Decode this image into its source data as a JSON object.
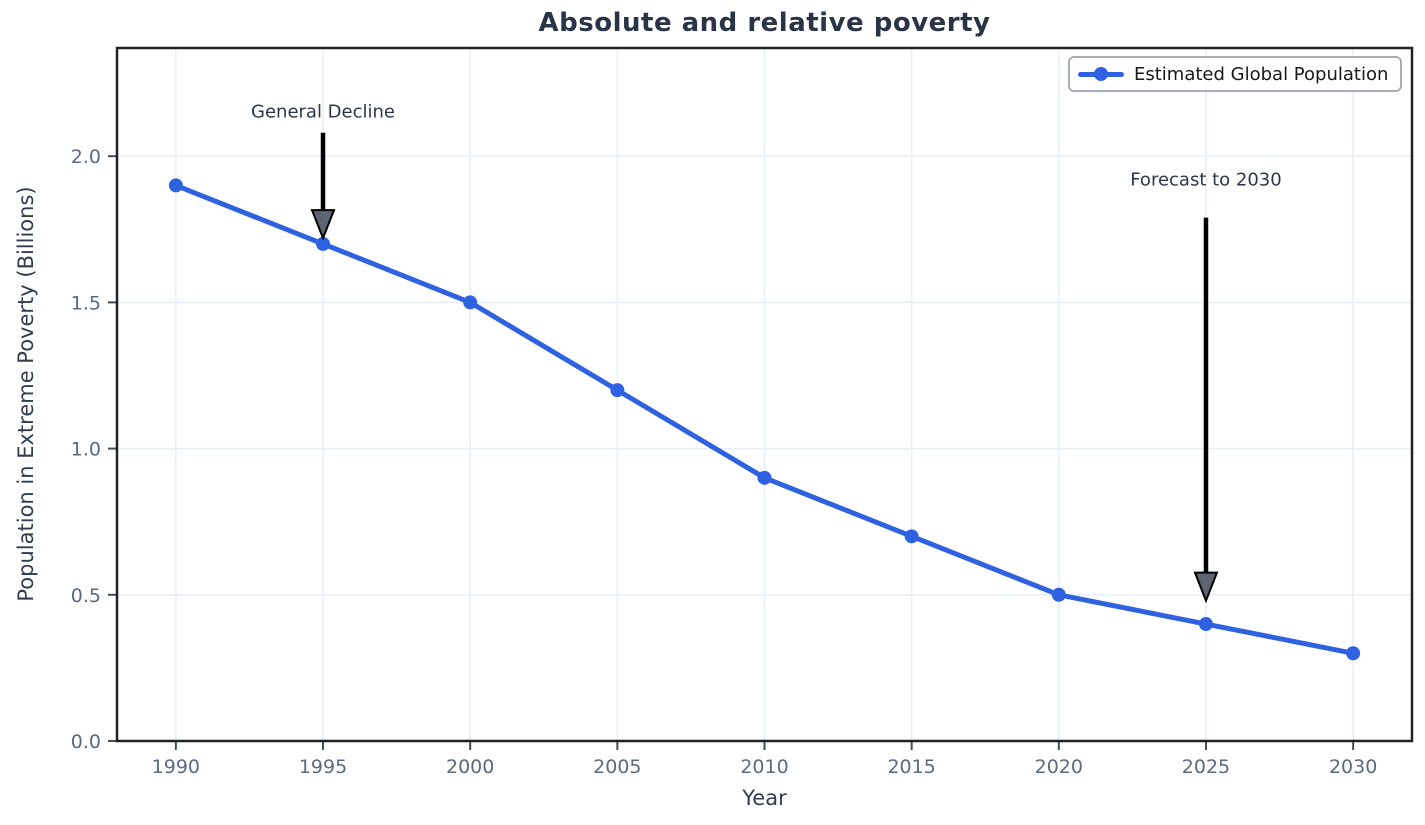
{
  "chart_data": {
    "type": "line",
    "title": "Absolute and relative poverty",
    "xlabel": "Year",
    "ylabel": "Population in Extreme Poverty (Billions)",
    "x": [
      1990,
      1995,
      2000,
      2005,
      2010,
      2015,
      2020,
      2025,
      2030
    ],
    "series": [
      {
        "name": "Estimated Global Population",
        "values": [
          1.9,
          1.7,
          1.5,
          1.2,
          0.9,
          0.7,
          0.5,
          0.4,
          0.3
        ],
        "color": "#2e62e1",
        "marker": "circle"
      }
    ],
    "xlim": [
      1988,
      2032
    ],
    "ylim": [
      0,
      2.37
    ],
    "xticks": [
      1990,
      1995,
      2000,
      2005,
      2010,
      2015,
      2020,
      2025,
      2030
    ],
    "xtick_labels": [
      "1990",
      "1995",
      "2000",
      "2005",
      "2010",
      "2015",
      "2020",
      "2025",
      "2030"
    ],
    "yticks": [
      0.0,
      0.5,
      1.0,
      1.5,
      2.0
    ],
    "ytick_labels": [
      "0.0",
      "0.5",
      "1.0",
      "1.5",
      "2.0"
    ],
    "grid": true,
    "legend_position": "upper right",
    "annotations": [
      {
        "text": "General Decline",
        "x": 1995,
        "text_y": 2.15,
        "arrow_from_y": 2.08,
        "arrow_to_y": 1.72
      },
      {
        "text": "Forecast to 2030",
        "x": 2025,
        "text_y": 1.92,
        "arrow_from_y": 1.79,
        "arrow_to_y": 0.48
      }
    ]
  },
  "colors": {
    "line": "#2e62e1",
    "grid": "#e9eff6",
    "spine": "#222222",
    "tick": "#444c5a",
    "tick_label": "#5a6a80",
    "title": "#2a3447",
    "axis_label": "#333d4f",
    "annotation_text": "#2c3849",
    "arrow_shaft": "#000000",
    "arrow_head_fill": "#5d6570",
    "legend_border": "#a6adb9",
    "legend_text": "#16181c",
    "background": "#ffffff"
  }
}
